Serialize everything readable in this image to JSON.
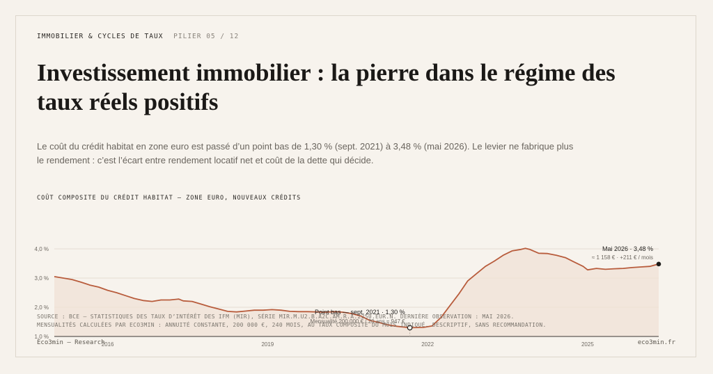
{
  "header": {
    "kicker": "IMMOBILIER & CYCLES DE TAUX",
    "pillar": "PILIER 05 / 12",
    "title": "Investissement immobilier : la pierre dans le régime des taux réels positifs",
    "lede": "Le coût du crédit habitat en zone euro est passé d’un point bas de 1,30 % (sept. 2021) à 3,48 % (mai 2026). Le levier ne fabrique plus le rendement : c’est l’écart entre rendement locatif net et coût de la dette qui décide."
  },
  "chart_data": {
    "type": "area",
    "title": "COÛT COMPOSITE DU CRÉDIT HABITAT — ZONE EURO, NOUVEAUX CRÉDITS",
    "xlabel": "",
    "ylabel": "",
    "x_range": [
      "2015-01",
      "2026-05"
    ],
    "ylim": [
      1.0,
      4.0
    ],
    "yticks": [
      {
        "value": 1.0,
        "label": "1,0 %"
      },
      {
        "value": 2.0,
        "label": "2,0 %"
      },
      {
        "value": 3.0,
        "label": "3,0 %"
      },
      {
        "value": 4.0,
        "label": "4,0 %"
      }
    ],
    "xticks": [
      {
        "value": "2016-01",
        "label": "2016"
      },
      {
        "value": "2019-01",
        "label": "2019"
      },
      {
        "value": "2022-01",
        "label": "2022"
      },
      {
        "value": "2025-01",
        "label": "2025"
      }
    ],
    "grid": true,
    "color": "#b85c3c",
    "fill": "#f0e1d6",
    "series": [
      {
        "name": "",
        "points": [
          [
            "2015-01",
            3.05
          ],
          [
            "2015-03",
            3.0
          ],
          [
            "2015-05",
            2.95
          ],
          [
            "2015-07",
            2.86
          ],
          [
            "2015-09",
            2.76
          ],
          [
            "2015-11",
            2.69
          ],
          [
            "2016-01",
            2.58
          ],
          [
            "2016-03",
            2.5
          ],
          [
            "2016-05",
            2.4
          ],
          [
            "2016-07",
            2.3
          ],
          [
            "2016-09",
            2.23
          ],
          [
            "2016-11",
            2.2
          ],
          [
            "2017-01",
            2.25
          ],
          [
            "2017-03",
            2.25
          ],
          [
            "2017-05",
            2.28
          ],
          [
            "2017-06",
            2.22
          ],
          [
            "2017-08",
            2.2
          ],
          [
            "2017-10",
            2.11
          ],
          [
            "2017-12",
            2.02
          ],
          [
            "2018-02",
            1.94
          ],
          [
            "2018-04",
            1.86
          ],
          [
            "2018-06",
            1.84
          ],
          [
            "2018-08",
            1.87
          ],
          [
            "2018-10",
            1.9
          ],
          [
            "2018-12",
            1.9
          ],
          [
            "2019-02",
            1.92
          ],
          [
            "2019-04",
            1.9
          ],
          [
            "2019-06",
            1.86
          ],
          [
            "2019-08",
            1.85
          ],
          [
            "2019-10",
            1.85
          ],
          [
            "2019-12",
            1.84
          ],
          [
            "2020-02",
            1.83
          ],
          [
            "2020-04",
            1.85
          ],
          [
            "2020-06",
            1.83
          ],
          [
            "2020-08",
            1.78
          ],
          [
            "2020-10",
            1.7
          ],
          [
            "2020-12",
            1.55
          ],
          [
            "2021-02",
            1.48
          ],
          [
            "2021-04",
            1.4
          ],
          [
            "2021-06",
            1.35
          ],
          [
            "2021-09",
            1.3
          ],
          [
            "2021-12",
            1.31
          ],
          [
            "2022-02",
            1.36
          ],
          [
            "2022-04",
            1.65
          ],
          [
            "2022-06",
            2.05
          ],
          [
            "2022-08",
            2.45
          ],
          [
            "2022-10",
            2.9
          ],
          [
            "2022-12",
            3.15
          ],
          [
            "2023-02",
            3.4
          ],
          [
            "2023-04",
            3.58
          ],
          [
            "2023-06",
            3.78
          ],
          [
            "2023-08",
            3.93
          ],
          [
            "2023-10",
            3.98
          ],
          [
            "2023-11",
            4.02
          ],
          [
            "2023-12",
            3.98
          ],
          [
            "2024-02",
            3.85
          ],
          [
            "2024-04",
            3.84
          ],
          [
            "2024-06",
            3.78
          ],
          [
            "2024-08",
            3.7
          ],
          [
            "2024-10",
            3.55
          ],
          [
            "2024-12",
            3.4
          ],
          [
            "2025-01",
            3.28
          ],
          [
            "2025-03",
            3.33
          ],
          [
            "2025-05",
            3.3
          ],
          [
            "2025-07",
            3.32
          ],
          [
            "2025-09",
            3.33
          ],
          [
            "2025-11",
            3.36
          ],
          [
            "2026-01",
            3.38
          ],
          [
            "2026-03",
            3.4
          ],
          [
            "2026-05",
            3.48
          ]
        ]
      }
    ],
    "annotations": [
      {
        "x": "2026-05",
        "y": 3.48,
        "label": "Mai 2026 · 3,48 %",
        "sublabel": "≈ 1 158 € · +211 € / mois"
      },
      {
        "x": "2021-09",
        "y": 1.3,
        "label": "Point bas — sept. 2021 · 1,30 %",
        "sublabel": "Mensualité 200 000 € / 20 ans ≈ 947 €"
      }
    ]
  },
  "source": {
    "line1": "SOURCE : BCE — STATISTIQUES DES TAUX D’INTÉRÊT DES IFM (MIR), SÉRIE MIR.M.U2.B.A2C.AM.R.A.2250.EUR.N. DERNIÈRE OBSERVATION : MAI 2026.",
    "line2": "MENSUALITÉS CALCULÉES PAR ECO3MIN : ANNUITÉ CONSTANTE, 200 000 €, 240 MOIS, AU TAUX COMPOSITE DU MOIS INDIQUÉ. DESCRIPTIF, SANS RECOMMANDATION."
  },
  "footer": {
    "left": "Eco3min — Research",
    "right": "eco3min.fr"
  }
}
